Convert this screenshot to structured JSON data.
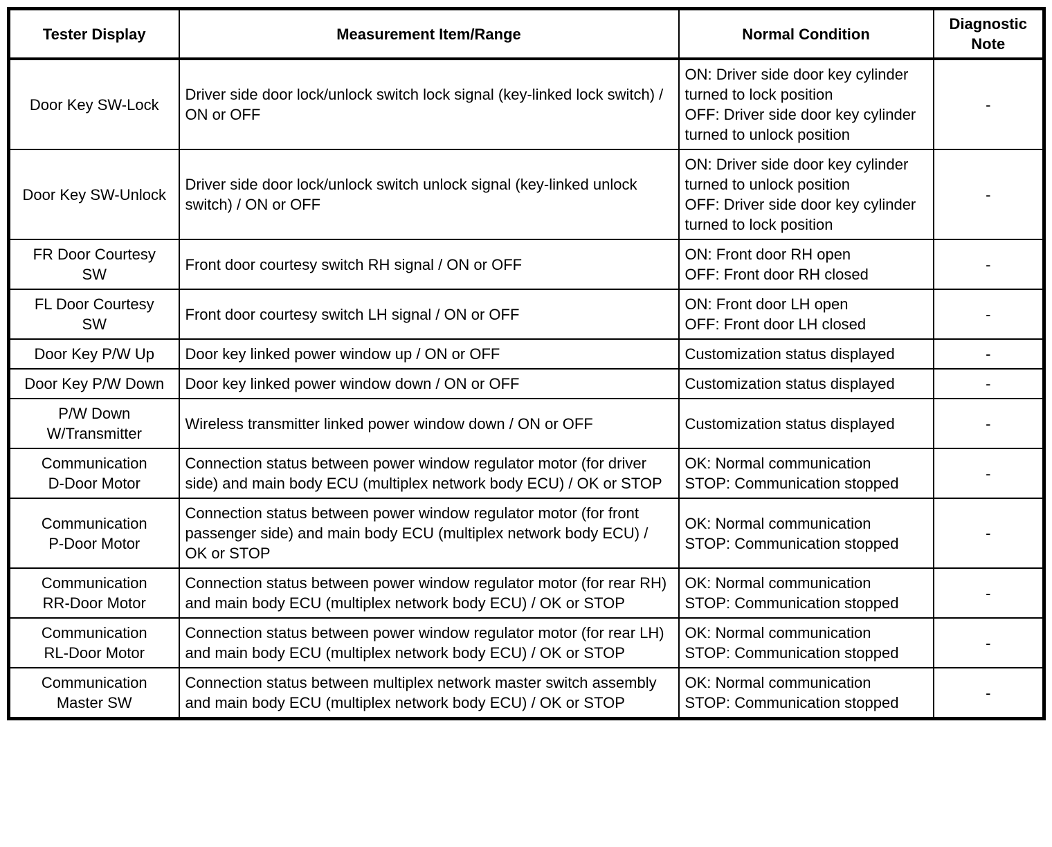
{
  "table": {
    "headers": [
      "Tester Display",
      "Measurement Item/Range",
      "Normal Condition",
      "Diagnostic\nNote"
    ],
    "rows": [
      {
        "tester": "Door Key SW-Lock",
        "item": "Driver side door lock/unlock switch lock signal (key-linked lock switch) / ON or OFF",
        "condition": "ON: Driver side door key cylinder turned to lock position\nOFF: Driver side door key cylinder turned to unlock position",
        "note": "-"
      },
      {
        "tester": "Door Key SW-Unlock",
        "item": "Driver side door lock/unlock switch unlock signal (key-linked unlock switch) / ON or OFF",
        "condition": "ON: Driver side door key cylinder turned to unlock position\nOFF: Driver side door key cylinder turned to lock position",
        "note": "-"
      },
      {
        "tester": "FR Door Courtesy\nSW",
        "item": "Front door courtesy switch RH signal / ON or OFF",
        "condition": "ON: Front door RH open\nOFF: Front door RH closed",
        "note": "-"
      },
      {
        "tester": "FL Door Courtesy\nSW",
        "item": "Front door courtesy switch LH signal / ON or OFF",
        "condition": "ON: Front door LH open\nOFF: Front door LH closed",
        "note": "-"
      },
      {
        "tester": "Door Key P/W Up",
        "item": "Door key linked power window up / ON or OFF",
        "condition": "Customization status displayed",
        "note": "-"
      },
      {
        "tester": "Door Key P/W Down",
        "item": "Door key linked power window down / ON or OFF",
        "condition": "Customization status displayed",
        "note": "-"
      },
      {
        "tester": "P/W Down\nW/Transmitter",
        "item": "Wireless transmitter linked power window down / ON or OFF",
        "condition": "Customization status displayed",
        "note": "-"
      },
      {
        "tester": "Communication\nD-Door Motor",
        "item": "Connection status between power window regulator motor (for driver side) and main body ECU (multiplex network body ECU) / OK or STOP",
        "condition": "OK: Normal communication\nSTOP: Communication stopped",
        "note": "-"
      },
      {
        "tester": "Communication\nP-Door Motor",
        "item": "Connection status between power window regulator motor (for front passenger side) and main body ECU (multiplex network body ECU) / OK or STOP",
        "condition": "OK: Normal communication\nSTOP: Communication stopped",
        "note": "-"
      },
      {
        "tester": "Communication\nRR-Door Motor",
        "item": "Connection status between power window regulator motor (for rear RH) and main body ECU (multiplex network body ECU) / OK or STOP",
        "condition": "OK: Normal communication\nSTOP: Communication stopped",
        "note": "-"
      },
      {
        "tester": "Communication\nRL-Door Motor",
        "item": "Connection status between power window regulator motor (for rear LH) and main body ECU (multiplex network body ECU) / OK or STOP",
        "condition": "OK: Normal communication\nSTOP: Communication stopped",
        "note": "-"
      },
      {
        "tester": "Communication\nMaster SW",
        "item": "Connection status between multiplex network master switch assembly and main body ECU (multiplex network body ECU) / OK or STOP",
        "condition": "OK: Normal communication\nSTOP: Communication stopped",
        "note": "-"
      }
    ]
  }
}
